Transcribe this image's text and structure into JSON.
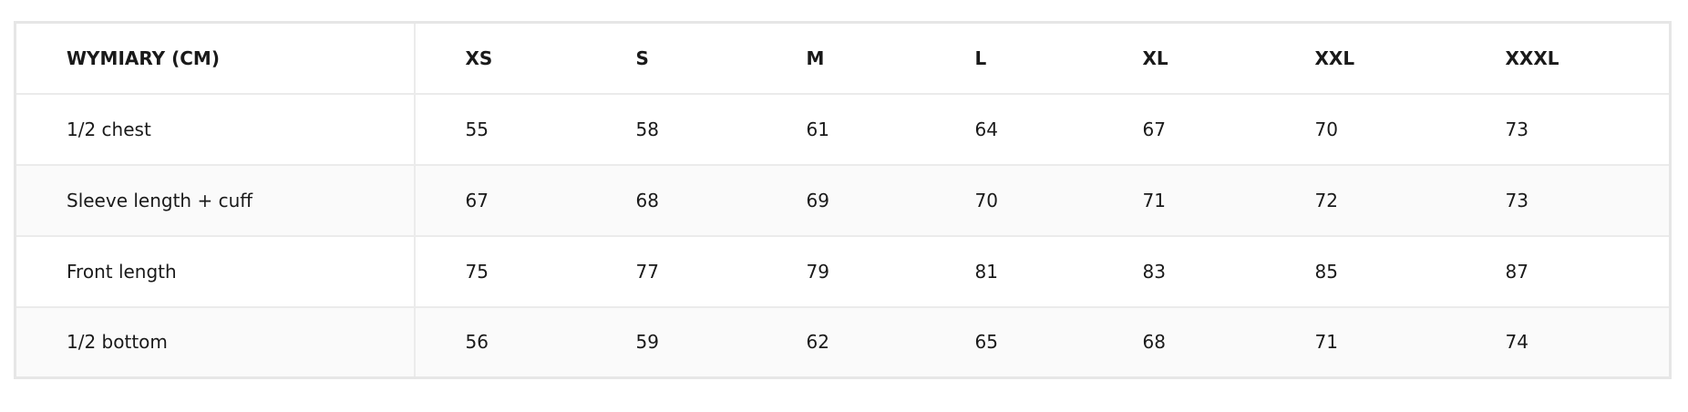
{
  "table": {
    "headers": [
      "WYMIARY (CM)",
      "XS",
      "S",
      "M",
      "L",
      "XL",
      "XXL",
      "XXXL"
    ],
    "rows": [
      {
        "label": "1/2 chest",
        "values": [
          "55",
          "58",
          "61",
          "64",
          "67",
          "70",
          "73"
        ]
      },
      {
        "label": "Sleeve length + cuff",
        "values": [
          "67",
          "68",
          "69",
          "70",
          "71",
          "72",
          "73"
        ]
      },
      {
        "label": "Front length",
        "values": [
          "75",
          "77",
          "79",
          "81",
          "83",
          "85",
          "87"
        ]
      },
      {
        "label": "1/2 bottom",
        "values": [
          "56",
          "59",
          "62",
          "65",
          "68",
          "71",
          "74"
        ]
      }
    ]
  },
  "colors": {
    "border": "#e6e6e6",
    "alt_row": "#fafafa",
    "text": "#1a1a1a"
  }
}
